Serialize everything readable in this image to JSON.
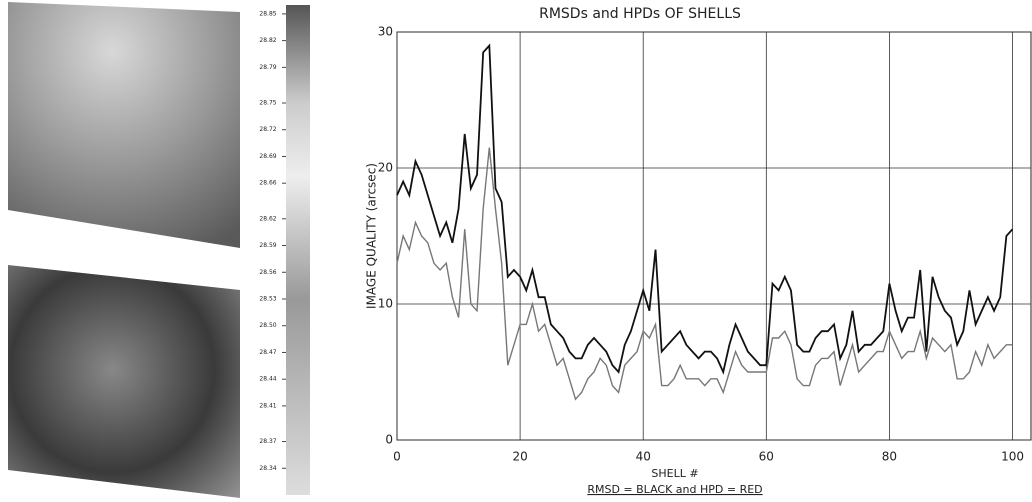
{
  "chart_data": [
    {
      "type": "colorbar",
      "ylim": [
        28.31,
        28.86
      ],
      "yticks": [
        {
          "value": 28.34,
          "label": "28.34"
        },
        {
          "value": 28.37,
          "label": "28.37"
        },
        {
          "value": 28.41,
          "label": "28.41"
        },
        {
          "value": 28.44,
          "label": "28.44"
        },
        {
          "value": 28.47,
          "label": "28.47"
        },
        {
          "value": 28.5,
          "label": "28.50"
        },
        {
          "value": 28.53,
          "label": "28.53"
        },
        {
          "value": 28.56,
          "label": "28.56"
        },
        {
          "value": 28.59,
          "label": "28.59"
        },
        {
          "value": 28.62,
          "label": "28.62"
        },
        {
          "value": 28.66,
          "label": "28.66"
        },
        {
          "value": 28.69,
          "label": "28.69"
        },
        {
          "value": 28.72,
          "label": "28.72"
        },
        {
          "value": 28.75,
          "label": "28.75"
        },
        {
          "value": 28.79,
          "label": "28.79"
        },
        {
          "value": 28.82,
          "label": "28.82"
        },
        {
          "value": 28.85,
          "label": "28.85"
        }
      ]
    },
    {
      "type": "line",
      "title": "RMSDs and HPDs OF SHELLS",
      "y_label": "IMAGE QUALITY (arcsec)",
      "x_label": "SHELL #",
      "subtitle": "RMSD = BLACK and HPD = RED",
      "xlim": [
        0,
        103
      ],
      "xticks": [
        0,
        20,
        40,
        60,
        80,
        100
      ],
      "ylim": [
        0,
        30
      ],
      "yticks": [
        0,
        10,
        20,
        30
      ],
      "grid": true,
      "x": [
        0,
        1,
        2,
        3,
        4,
        5,
        6,
        7,
        8,
        9,
        10,
        11,
        12,
        13,
        14,
        15,
        16,
        17,
        18,
        19,
        20,
        21,
        22,
        23,
        24,
        25,
        26,
        27,
        28,
        29,
        30,
        31,
        32,
        33,
        34,
        35,
        36,
        37,
        38,
        39,
        40,
        41,
        42,
        43,
        44,
        45,
        46,
        47,
        48,
        49,
        50,
        51,
        52,
        53,
        54,
        55,
        56,
        57,
        58,
        59,
        60,
        61,
        62,
        63,
        64,
        65,
        66,
        67,
        68,
        69,
        70,
        71,
        72,
        73,
        74,
        75,
        76,
        77,
        78,
        79,
        80,
        81,
        82,
        83,
        84,
        85,
        86,
        87,
        88,
        89,
        90,
        91,
        92,
        93,
        94,
        95,
        96,
        97,
        98,
        99,
        100
      ],
      "series": [
        {
          "color": "#111111",
          "values": [
            18,
            19,
            18,
            20.5,
            19.5,
            18,
            16.5,
            15,
            16,
            14.5,
            17,
            22.5,
            18.5,
            19.5,
            28.5,
            29,
            18.5,
            17.5,
            12,
            12.5,
            12,
            11,
            12.5,
            10.5,
            10.5,
            8.5,
            8,
            7.5,
            6.5,
            6,
            6,
            7,
            7.5,
            7,
            6.5,
            5.5,
            5,
            7,
            8,
            9.5,
            11,
            9.5,
            14,
            6.5,
            7,
            7.5,
            8,
            7,
            6.5,
            6,
            6.5,
            6.5,
            6,
            5,
            7,
            8.5,
            7.5,
            6.5,
            6,
            5.5,
            5.5,
            11.5,
            11,
            12,
            11,
            7,
            6.5,
            6.5,
            7.5,
            8,
            8,
            8.5,
            6,
            7,
            9.5,
            6.5,
            7,
            7,
            7.5,
            8,
            11.5,
            9.5,
            8,
            9,
            9,
            12.5,
            6.5,
            12,
            10.5,
            9.5,
            9,
            7,
            8,
            11,
            8.5,
            9.5,
            10.5,
            9.5,
            10.5,
            15,
            15.5
          ]
        },
        {
          "color": "#777777",
          "values": [
            13,
            15,
            14,
            16,
            15,
            14.5,
            13,
            12.5,
            13,
            10.5,
            9,
            15.5,
            10,
            9.5,
            17,
            21.5,
            17,
            13,
            5.5,
            7,
            8.5,
            8.5,
            10,
            8,
            8.5,
            7,
            5.5,
            6,
            4.5,
            3,
            3.5,
            4.5,
            5,
            6,
            5.5,
            4,
            3.5,
            5.5,
            6,
            6.5,
            8,
            7.5,
            8.5,
            4,
            4,
            4.5,
            5.5,
            4.5,
            4.5,
            4.5,
            4,
            4.5,
            4.5,
            3.5,
            5,
            6.5,
            5.5,
            5,
            5,
            5,
            5,
            7.5,
            7.5,
            8,
            7,
            4.5,
            4,
            4,
            5.5,
            6,
            6,
            6.5,
            4,
            5.5,
            7,
            5,
            5.5,
            6,
            6.5,
            6.5,
            8,
            7,
            6,
            6.5,
            6.5,
            8,
            6,
            7.5,
            7,
            6.5,
            7,
            4.5,
            4.5,
            5,
            6.5,
            5.5,
            7,
            6,
            6.5,
            7,
            7
          ]
        }
      ]
    }
  ]
}
